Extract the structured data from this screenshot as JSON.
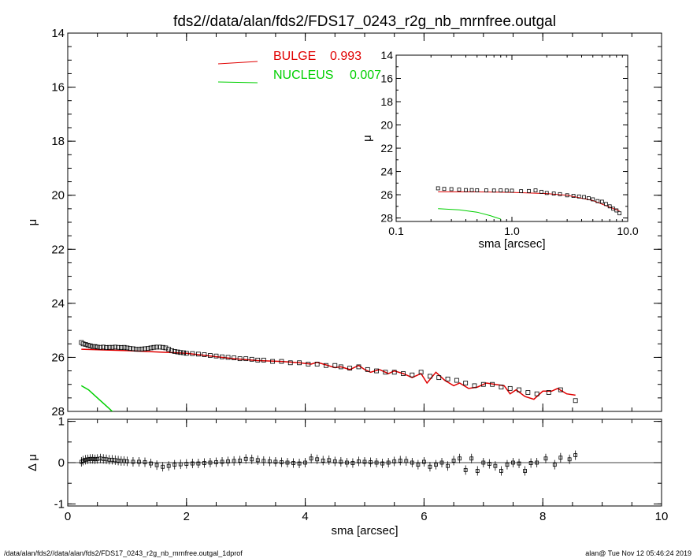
{
  "title": "fds2//data/alan/fds2/FDS17_0243_r2g_nb_mrnfree.outgal",
  "footer_left": "/data/alan/fds2//data/alan/fds2/FDS17_0243_r2g_nb_mrnfree.outgal_1dprof",
  "footer_right": "alan@  Tue Nov 12 05:46:24 2019",
  "colors": {
    "bulge": "#e00000",
    "nucleus": "#00d000",
    "data": "#000000"
  },
  "chart_data": [
    {
      "id": "main",
      "type": "scatter",
      "title": "fds2//data/alan/fds2/FDS17_0243_r2g_nb_mrnfree.outgal",
      "xlabel": "",
      "ylabel": "μ",
      "xlim": [
        0,
        10
      ],
      "ylim": [
        28,
        14
      ],
      "y_reversed": true,
      "xticks": [
        "0",
        "2",
        "4",
        "6",
        "8",
        "10"
      ],
      "yticks": [
        "14",
        "16",
        "18",
        "20",
        "22",
        "24",
        "26",
        "28"
      ],
      "legend": [
        {
          "name": "BULGE",
          "value": "0.993",
          "color": "#e00000"
        },
        {
          "name": "NUCLEUS",
          "value": "0.007",
          "color": "#00d000"
        }
      ],
      "series": [
        {
          "name": "BULGE",
          "style": "line",
          "color": "#e00000",
          "x": [
            0.23,
            1.0,
            2.0,
            2.8,
            3.2,
            3.6,
            3.9,
            4.1,
            4.2,
            4.35,
            4.5,
            4.6,
            4.75,
            4.9,
            5.0,
            5.1,
            5.25,
            5.4,
            5.5,
            5.65,
            5.8,
            5.95,
            6.05,
            6.2,
            6.35,
            6.5,
            6.6,
            6.75,
            6.9,
            7.05,
            7.2,
            7.35,
            7.45,
            7.55,
            7.7,
            7.85,
            8.0,
            8.15,
            8.25,
            8.4,
            8.55
          ],
          "y": [
            25.7,
            25.75,
            25.85,
            26.05,
            26.12,
            26.15,
            26.2,
            26.25,
            26.18,
            26.28,
            26.38,
            26.35,
            26.45,
            26.3,
            26.45,
            26.55,
            26.45,
            26.6,
            26.5,
            26.6,
            26.75,
            26.6,
            26.95,
            26.55,
            26.85,
            27.05,
            26.95,
            27.15,
            27.1,
            26.95,
            27.0,
            27.05,
            27.35,
            27.2,
            27.45,
            27.55,
            27.25,
            27.25,
            27.15,
            27.35,
            27.4
          ]
        },
        {
          "name": "NUCLEUS",
          "style": "line",
          "color": "#00d000",
          "x": [
            0.23,
            0.35,
            0.45,
            0.55,
            0.65,
            0.75,
            0.8
          ],
          "y": [
            27.05,
            27.2,
            27.4,
            27.6,
            27.8,
            28.0,
            28.1
          ]
        },
        {
          "name": "data",
          "style": "points",
          "color": "#000000",
          "x": [
            0.23,
            0.26,
            0.3,
            0.34,
            0.38,
            0.42,
            0.46,
            0.5,
            0.55,
            0.6,
            0.65,
            0.7,
            0.75,
            0.8,
            0.85,
            0.9,
            0.95,
            1.0,
            1.05,
            1.1,
            1.15,
            1.2,
            1.25,
            1.3,
            1.35,
            1.4,
            1.45,
            1.5,
            1.55,
            1.6,
            1.65,
            1.7,
            1.75,
            1.8,
            1.85,
            1.9,
            1.95,
            2.0,
            2.1,
            2.2,
            2.3,
            2.4,
            2.5,
            2.6,
            2.7,
            2.8,
            2.9,
            3.0,
            3.1,
            3.2,
            3.3,
            3.45,
            3.6,
            3.75,
            3.9,
            4.05,
            4.2,
            4.35,
            4.5,
            4.6,
            4.75,
            4.9,
            5.05,
            5.2,
            5.35,
            5.5,
            5.65,
            5.8,
            5.95,
            6.1,
            6.25,
            6.4,
            6.55,
            6.7,
            6.85,
            7.0,
            7.15,
            7.3,
            7.45,
            7.6,
            7.75,
            7.9,
            8.1,
            8.3,
            8.55
          ],
          "y": [
            25.45,
            25.5,
            25.52,
            25.55,
            25.57,
            25.6,
            25.6,
            25.62,
            25.63,
            25.62,
            25.64,
            25.63,
            25.63,
            25.62,
            25.63,
            25.64,
            25.63,
            25.65,
            25.67,
            25.68,
            25.7,
            25.7,
            25.69,
            25.68,
            25.67,
            25.65,
            25.63,
            25.62,
            25.62,
            25.63,
            25.65,
            25.7,
            25.75,
            25.78,
            25.8,
            25.82,
            25.83,
            25.85,
            25.86,
            25.88,
            25.9,
            25.93,
            25.95,
            25.98,
            26.0,
            26.02,
            26.05,
            26.05,
            26.07,
            26.1,
            26.1,
            26.15,
            26.15,
            26.2,
            26.2,
            26.25,
            26.25,
            26.3,
            26.3,
            26.35,
            26.4,
            26.35,
            26.45,
            26.5,
            26.55,
            26.55,
            26.6,
            26.65,
            26.55,
            26.7,
            26.75,
            26.8,
            26.85,
            26.95,
            27.05,
            27.0,
            27.0,
            27.1,
            27.15,
            27.2,
            27.3,
            27.35,
            27.3,
            27.2,
            27.6
          ]
        }
      ]
    },
    {
      "id": "residual",
      "type": "scatter",
      "xlabel": "sma [arcsec]",
      "ylabel": "Δ μ",
      "xlim": [
        0,
        10
      ],
      "ylim": [
        -1.05,
        1.05
      ],
      "xticks": [
        "0",
        "2",
        "4",
        "6",
        "8",
        "10"
      ],
      "yticks": [
        "1",
        "0",
        "-1"
      ],
      "series": [
        {
          "name": "residual",
          "style": "points",
          "color": "#000000",
          "x": [
            0.23,
            0.26,
            0.3,
            0.34,
            0.38,
            0.42,
            0.46,
            0.5,
            0.55,
            0.6,
            0.65,
            0.7,
            0.75,
            0.8,
            0.85,
            0.9,
            0.95,
            1.0,
            1.1,
            1.2,
            1.3,
            1.4,
            1.5,
            1.6,
            1.7,
            1.8,
            1.9,
            2.0,
            2.1,
            2.2,
            2.3,
            2.4,
            2.5,
            2.6,
            2.7,
            2.8,
            2.9,
            3.0,
            3.1,
            3.2,
            3.3,
            3.4,
            3.5,
            3.6,
            3.7,
            3.8,
            3.9,
            4.0,
            4.1,
            4.2,
            4.3,
            4.4,
            4.5,
            4.6,
            4.7,
            4.8,
            4.9,
            5.0,
            5.1,
            5.2,
            5.3,
            5.4,
            5.5,
            5.6,
            5.7,
            5.8,
            5.9,
            6.0,
            6.1,
            6.2,
            6.3,
            6.4,
            6.5,
            6.6,
            6.7,
            6.8,
            6.9,
            7.0,
            7.1,
            7.2,
            7.3,
            7.4,
            7.5,
            7.6,
            7.7,
            7.8,
            7.9,
            8.05,
            8.2,
            8.3,
            8.45,
            8.55
          ],
          "y": [
            0.02,
            0.05,
            0.07,
            0.08,
            0.09,
            0.09,
            0.08,
            0.09,
            0.1,
            0.09,
            0.08,
            0.07,
            0.07,
            0.06,
            0.05,
            0.04,
            0.04,
            0.03,
            0.02,
            0.02,
            0.01,
            -0.02,
            -0.06,
            -0.1,
            -0.08,
            -0.05,
            -0.04,
            -0.03,
            -0.02,
            -0.02,
            -0.01,
            0.0,
            0.01,
            0.02,
            0.03,
            0.04,
            0.05,
            0.09,
            0.08,
            0.06,
            0.04,
            0.03,
            0.02,
            0.01,
            0.0,
            -0.01,
            -0.02,
            0.0,
            0.1,
            0.08,
            0.05,
            0.06,
            0.03,
            0.02,
            0.0,
            -0.01,
            0.03,
            0.02,
            0.01,
            0.0,
            -0.02,
            0.0,
            0.03,
            0.05,
            0.04,
            0.0,
            -0.05,
            0.02,
            -0.1,
            -0.05,
            0.0,
            -0.08,
            0.05,
            0.1,
            -0.18,
            0.1,
            -0.2,
            0.0,
            -0.03,
            -0.08,
            -0.2,
            -0.05,
            0.0,
            -0.02,
            -0.2,
            -0.01,
            0.0,
            0.1,
            -0.05,
            0.12,
            0.08,
            0.18
          ]
        }
      ]
    },
    {
      "id": "inset",
      "type": "line",
      "xlabel": "sma [arcsec]",
      "ylabel": "μ",
      "xscale": "log",
      "xlim": [
        0.1,
        10.0
      ],
      "ylim": [
        28.3,
        14
      ],
      "xticks": [
        "0.1",
        "1.0",
        "10.0"
      ],
      "yticks": [
        "14",
        "16",
        "18",
        "20",
        "22",
        "24",
        "26",
        "28"
      ],
      "series": [
        {
          "name": "BULGE",
          "style": "line",
          "color": "#e00000",
          "x": [
            0.23,
            0.5,
            1.0,
            2.0,
            3.0,
            5.0,
            8.5
          ],
          "y": [
            25.75,
            25.76,
            25.8,
            25.9,
            26.05,
            26.5,
            27.4
          ]
        },
        {
          "name": "NUCLEUS",
          "style": "line",
          "color": "#00d000",
          "x": [
            0.23,
            0.35,
            0.5,
            0.65,
            0.8
          ],
          "y": [
            27.2,
            27.3,
            27.5,
            27.8,
            28.1
          ]
        },
        {
          "name": "data",
          "style": "points",
          "color": "#000000",
          "x": [
            0.23,
            0.26,
            0.3,
            0.35,
            0.4,
            0.45,
            0.5,
            0.6,
            0.7,
            0.8,
            0.9,
            1.0,
            1.2,
            1.4,
            1.6,
            1.8,
            2.0,
            2.3,
            2.6,
            3.0,
            3.4,
            3.8,
            4.2,
            4.6,
            5.0,
            5.5,
            6.0,
            6.5,
            7.0,
            7.5,
            8.0,
            8.5
          ],
          "y": [
            25.45,
            25.5,
            25.52,
            25.56,
            25.6,
            25.6,
            25.62,
            25.63,
            25.64,
            25.63,
            25.64,
            25.65,
            25.7,
            25.68,
            25.63,
            25.75,
            25.85,
            25.9,
            25.95,
            26.05,
            26.1,
            26.15,
            26.2,
            26.3,
            26.4,
            26.55,
            26.6,
            26.8,
            27.0,
            27.2,
            27.35,
            27.6
          ]
        }
      ]
    }
  ]
}
